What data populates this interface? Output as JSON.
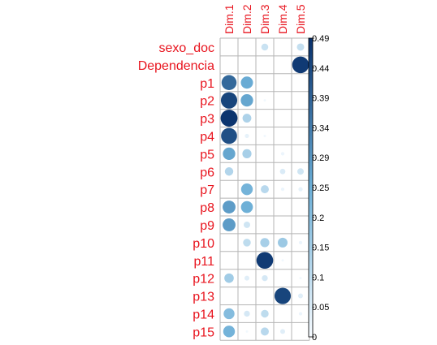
{
  "chart_data": {
    "type": "heatmap",
    "subtype": "correlation-circle-plot",
    "title": "",
    "columns": [
      "Dim.1",
      "Dim.2",
      "Dim.3",
      "Dim.4",
      "Dim.5"
    ],
    "rows": [
      "sexo_doc",
      "Dependencia",
      "p1",
      "p2",
      "p3",
      "p4",
      "p5",
      "p6",
      "p7",
      "p8",
      "p9",
      "p10",
      "p11",
      "p12",
      "p13",
      "p14",
      "p15"
    ],
    "values": [
      [
        0.0,
        0.0,
        0.08,
        0.0,
        0.09
      ],
      [
        0.0,
        0.0,
        0.0,
        0.0,
        0.47
      ],
      [
        0.38,
        0.25,
        0.0,
        0.0,
        0.0
      ],
      [
        0.45,
        0.26,
        0.01,
        0.0,
        0.0
      ],
      [
        0.48,
        0.13,
        0.0,
        0.0,
        0.0
      ],
      [
        0.43,
        0.03,
        0.01,
        0.0,
        0.0
      ],
      [
        0.26,
        0.14,
        0.0,
        0.02,
        0.0
      ],
      [
        0.12,
        0.0,
        0.0,
        0.05,
        0.07
      ],
      [
        0.0,
        0.23,
        0.11,
        0.02,
        0.03
      ],
      [
        0.28,
        0.24,
        0.0,
        0.0,
        0.0
      ],
      [
        0.28,
        0.07,
        0.0,
        0.0,
        0.0
      ],
      [
        0.0,
        0.1,
        0.14,
        0.16,
        0.02
      ],
      [
        0.0,
        0.0,
        0.47,
        0.01,
        0.0
      ],
      [
        0.15,
        0.04,
        0.06,
        0.0,
        0.01
      ],
      [
        0.0,
        0.0,
        0.0,
        0.45,
        0.04
      ],
      [
        0.2,
        0.06,
        0.1,
        0.0,
        0.02
      ],
      [
        0.23,
        0.01,
        0.11,
        0.04,
        0.0
      ]
    ],
    "colorbar": {
      "min": 0,
      "max": 0.49,
      "tick_labels": [
        "0",
        "0.05",
        "0.1",
        "0.15",
        "0.2",
        "0.25",
        "0.29",
        "0.34",
        "0.39",
        "0.44",
        "0.49"
      ],
      "tick_values": [
        0,
        0.049,
        0.098,
        0.147,
        0.196,
        0.245,
        0.294,
        0.343,
        0.392,
        0.441,
        0.49
      ]
    },
    "colors": {
      "label": "#e8141e",
      "grid": "#b5b5b5",
      "low": "#f7fbff",
      "mid": "#6baed6",
      "high": "#08306b"
    }
  }
}
